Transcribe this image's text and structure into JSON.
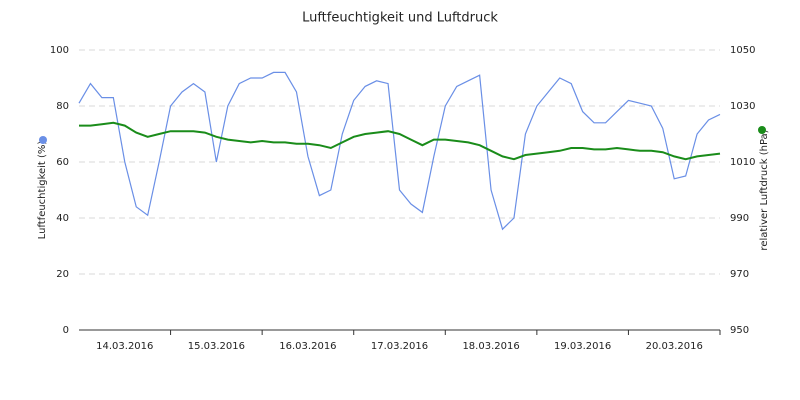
{
  "chart_data": {
    "type": "line",
    "title": "Luftfeuchtigkeit und Luftdruck",
    "ylabel": "Luftfeuchtigkeit (%)",
    "y2label": "relativer Luftdruck (hPa)",
    "x": [
      0,
      0.125,
      0.25,
      0.375,
      0.5,
      0.625,
      0.75,
      0.875,
      1,
      1.125,
      1.25,
      1.375,
      1.5,
      1.625,
      1.75,
      1.875,
      2,
      2.125,
      2.25,
      2.375,
      2.5,
      2.625,
      2.75,
      2.875,
      3,
      3.125,
      3.25,
      3.375,
      3.5,
      3.625,
      3.75,
      3.875,
      4,
      4.125,
      4.25,
      4.375,
      4.5,
      4.625,
      4.75,
      4.875,
      5,
      5.125,
      5.25,
      5.375,
      5.5,
      5.625,
      5.75,
      5.875,
      6,
      6.125,
      6.25,
      6.375,
      6.5,
      6.625,
      6.75,
      6.875,
      7
    ],
    "xlim": [
      0,
      7
    ],
    "xticks": [
      {
        "value": 0.5,
        "label": "14.03.2016"
      },
      {
        "value": 1.5,
        "label": "15.03.2016"
      },
      {
        "value": 2.5,
        "label": "16.03.2016"
      },
      {
        "value": 3.5,
        "label": "17.03.2016"
      },
      {
        "value": 4.5,
        "label": "18.03.2016"
      },
      {
        "value": 5.5,
        "label": "19.03.2016"
      },
      {
        "value": 6.5,
        "label": "20.03.2016"
      }
    ],
    "ylim": [
      0,
      100
    ],
    "yticks": [
      0,
      20,
      40,
      60,
      80,
      100
    ],
    "y2lim": [
      950,
      1050
    ],
    "y2ticks": [
      950,
      970,
      990,
      1010,
      1030,
      1050
    ],
    "grid": true,
    "series": [
      {
        "color": "#6a8fe6",
        "values": [
          81,
          88,
          83,
          83,
          60,
          44,
          41,
          60,
          80,
          85,
          88,
          85,
          60,
          80,
          88,
          90,
          90,
          92,
          92,
          85,
          62,
          48,
          50,
          70,
          82,
          87,
          89,
          88,
          50,
          45,
          42,
          62,
          80,
          87,
          89,
          91,
          50,
          36,
          40,
          70,
          80,
          85,
          90,
          88,
          78,
          74,
          74,
          78,
          82,
          81,
          80,
          72,
          54,
          55,
          70,
          75,
          77
        ]
      },
      {
        "color": "#1a8c1a",
        "axis": "y2",
        "values": [
          1023,
          1023,
          1023.5,
          1024,
          1023,
          1020.5,
          1019,
          1020,
          1021,
          1021,
          1021,
          1020.5,
          1019,
          1018,
          1017.5,
          1017,
          1017.5,
          1017,
          1017,
          1016.5,
          1016.5,
          1016,
          1015,
          1017,
          1019,
          1020,
          1020.5,
          1021,
          1020,
          1018,
          1016,
          1018,
          1018,
          1017.5,
          1017,
          1016,
          1014,
          1012,
          1011,
          1012.5,
          1013,
          1013.5,
          1014,
          1015,
          1015,
          1014.5,
          1014.5,
          1015,
          1014.5,
          1014,
          1014,
          1013.5,
          1012,
          1011,
          1012,
          1012.5,
          1013
        ]
      }
    ]
  }
}
